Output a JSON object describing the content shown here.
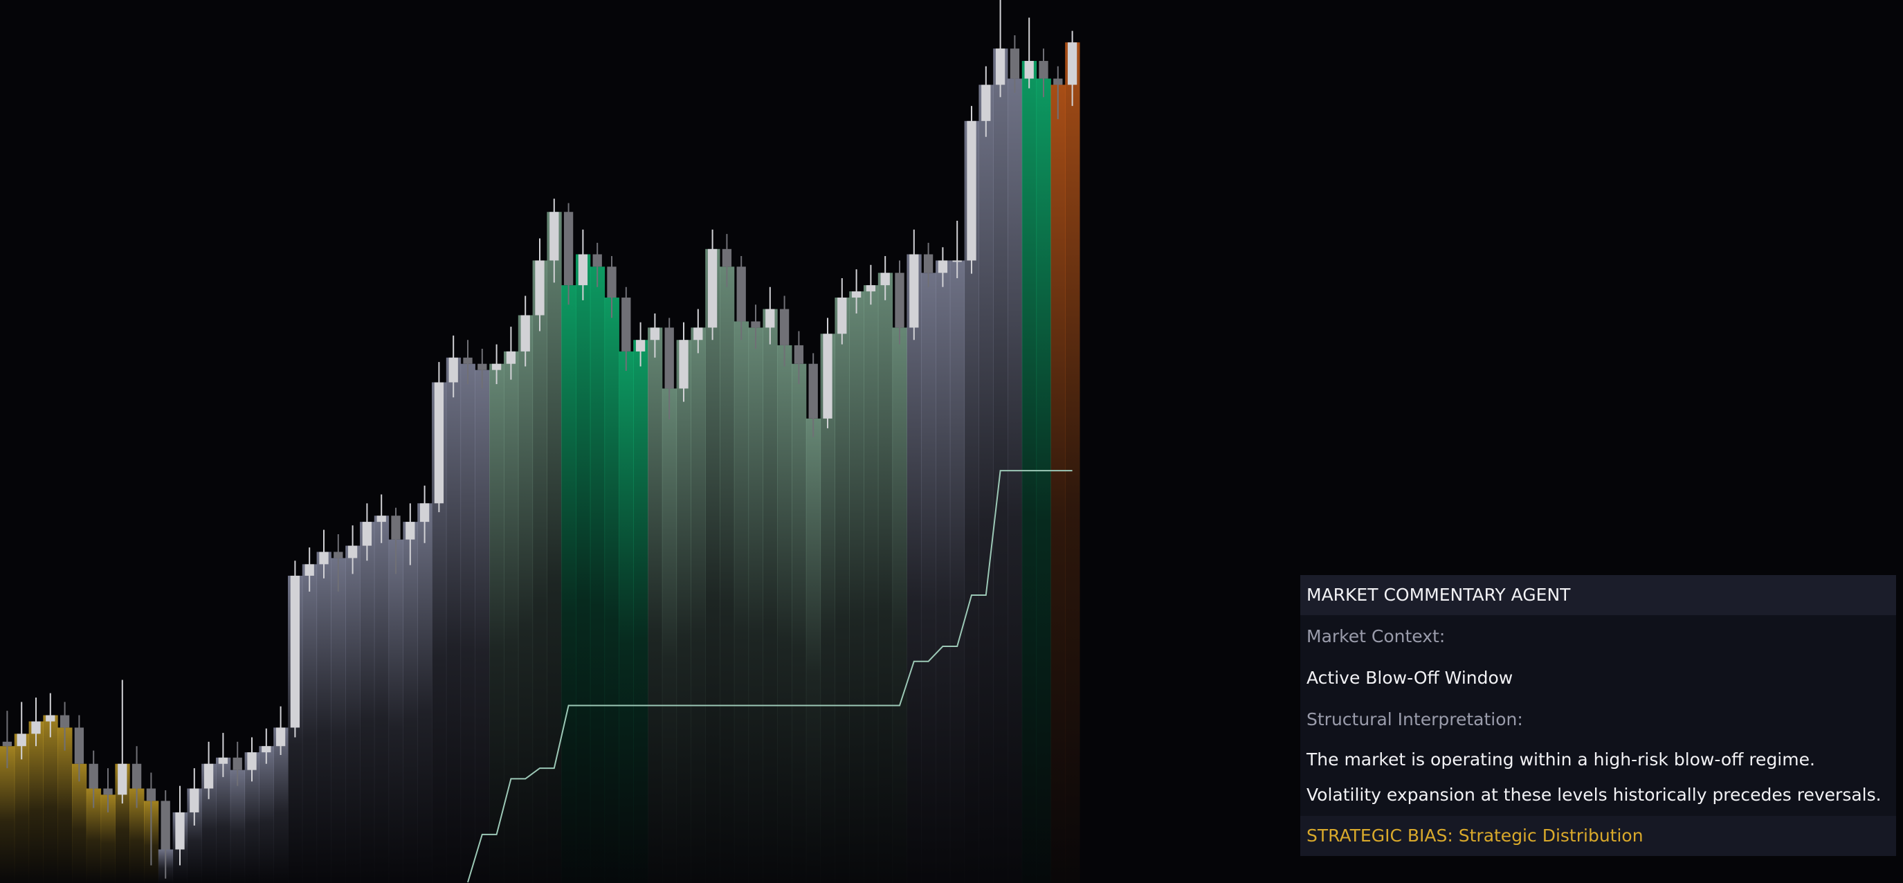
{
  "chart_data": {
    "type": "candlestick",
    "open": [
      16.0,
      15.5,
      16.9,
      18.3,
      19.0,
      17.6,
      13.5,
      10.7,
      10.0,
      13.5,
      10.7,
      9.3,
      3.8,
      8.0,
      10.7,
      13.5,
      14.2,
      12.8,
      14.8,
      15.5,
      17.6,
      34.8,
      36.1,
      37.5,
      36.8,
      38.2,
      40.9,
      41.6,
      38.9,
      40.9,
      43.0,
      56.7,
      59.5,
      58.8,
      58.1,
      58.8,
      60.2,
      64.3,
      70.5,
      76.0,
      67.7,
      71.2,
      69.8,
      66.3,
      60.2,
      61.5,
      62.9,
      56.0,
      61.5,
      62.9,
      71.8,
      69.8,
      63.6,
      62.9,
      65.0,
      60.9,
      58.8,
      52.6,
      62.2,
      66.3,
      67.0,
      67.7,
      69.1,
      62.9,
      71.2,
      69.1,
      70.5,
      70.5,
      86.3,
      90.4,
      94.5,
      91.1,
      93.1,
      91.1,
      90.4
    ],
    "high": [
      19.5,
      20.5,
      21.0,
      21.5,
      20.5,
      19.0,
      15.0,
      13.0,
      23.0,
      15.5,
      12.5,
      10.5,
      11.0,
      13.0,
      16.0,
      17.0,
      16.0,
      16.5,
      17.5,
      20.0,
      36.5,
      38.0,
      40.0,
      39.5,
      40.5,
      43.0,
      44.0,
      42.5,
      43.0,
      45.0,
      59.0,
      62.0,
      61.5,
      60.5,
      61.0,
      63.0,
      66.5,
      73.0,
      77.5,
      77.0,
      74.0,
      72.5,
      71.0,
      67.5,
      63.5,
      64.5,
      64.0,
      63.5,
      65.0,
      74.0,
      73.5,
      71.0,
      65.5,
      67.5,
      66.5,
      62.5,
      60.0,
      64.0,
      68.5,
      69.5,
      70.0,
      71.0,
      70.5,
      74.0,
      72.5,
      72.0,
      75.0,
      88.0,
      92.5,
      100.0,
      96.0,
      98.0,
      94.5,
      92.5,
      96.5
    ],
    "low": [
      13.0,
      14.0,
      15.5,
      16.5,
      15.0,
      11.5,
      8.5,
      8.0,
      9.0,
      8.5,
      2.0,
      0.5,
      2.0,
      6.5,
      9.5,
      12.0,
      11.0,
      11.5,
      13.5,
      14.5,
      16.5,
      33.0,
      34.5,
      33.0,
      35.0,
      36.5,
      38.5,
      35.0,
      36.0,
      38.5,
      42.0,
      55.0,
      56.5,
      56.0,
      56.5,
      57.0,
      58.5,
      62.5,
      68.0,
      65.5,
      66.0,
      67.5,
      64.0,
      58.0,
      58.5,
      59.5,
      52.5,
      54.5,
      60.0,
      61.5,
      67.5,
      61.5,
      60.5,
      61.0,
      58.5,
      56.5,
      50.5,
      51.5,
      61.0,
      64.5,
      65.5,
      66.0,
      61.0,
      61.5,
      67.5,
      67.5,
      68.5,
      69.0,
      84.5,
      89.0,
      89.5,
      90.0,
      89.0,
      86.5,
      88.0
    ],
    "close": [
      15.5,
      16.9,
      18.3,
      19.0,
      17.6,
      13.5,
      10.7,
      10.0,
      13.5,
      10.7,
      9.3,
      3.8,
      8.0,
      10.7,
      13.5,
      14.2,
      12.8,
      14.8,
      15.5,
      17.6,
      34.8,
      36.1,
      37.5,
      36.8,
      38.2,
      40.9,
      41.6,
      38.9,
      40.9,
      43.0,
      56.7,
      59.5,
      58.8,
      58.1,
      58.8,
      60.2,
      64.3,
      70.5,
      76.0,
      67.7,
      71.2,
      69.8,
      66.3,
      60.2,
      61.5,
      62.9,
      56.0,
      61.5,
      62.9,
      71.8,
      69.8,
      63.6,
      62.9,
      65.0,
      60.9,
      58.8,
      52.6,
      62.2,
      66.3,
      67.0,
      67.7,
      69.1,
      62.9,
      71.2,
      69.1,
      70.5,
      70.5,
      86.3,
      90.4,
      94.5,
      91.1,
      93.1,
      91.1,
      90.4,
      95.2
    ],
    "ylim": [
      0,
      100
    ],
    "up_color": "#d2d2d6",
    "down_color": "#707076",
    "bands": [
      {
        "from": 0,
        "to": 10,
        "color": "#c9a227"
      },
      {
        "from": 11,
        "to": 33,
        "color": "#8a8ea6"
      },
      {
        "from": 34,
        "to": 38,
        "color": "#7fa890"
      },
      {
        "from": 39,
        "to": 44,
        "color": "#0fbf78"
      },
      {
        "from": 45,
        "to": 62,
        "color": "#7fa890"
      },
      {
        "from": 63,
        "to": 70,
        "color": "#8a8ea6"
      },
      {
        "from": 71,
        "to": 72,
        "color": "#0fbf78"
      },
      {
        "from": 73,
        "to": 74,
        "color": "#d0601a"
      }
    ],
    "stop_line": {
      "color": "#9cc8b6",
      "values": [
        null,
        null,
        null,
        null,
        null,
        null,
        null,
        null,
        null,
        null,
        null,
        null,
        null,
        null,
        null,
        null,
        null,
        null,
        null,
        null,
        null,
        null,
        null,
        null,
        null,
        null,
        null,
        null,
        null,
        null,
        null,
        null,
        0.0,
        5.5,
        5.5,
        11.8,
        11.8,
        13.0,
        13.0,
        20.1,
        20.1,
        20.1,
        20.1,
        20.1,
        20.1,
        20.1,
        20.1,
        20.1,
        20.1,
        20.1,
        20.1,
        20.1,
        20.1,
        20.1,
        20.1,
        20.1,
        20.1,
        20.1,
        20.1,
        20.1,
        20.1,
        20.1,
        20.1,
        25.1,
        25.1,
        26.8,
        26.8,
        32.6,
        32.6,
        46.7,
        46.7,
        46.7,
        46.7,
        46.7,
        46.7
      ]
    }
  },
  "panel": {
    "title": "MARKET COMMENTARY AGENT",
    "context_label": "Market Context:",
    "context_value": "Active Blow-Off Window",
    "interpretation_label": "Structural Interpretation:",
    "interpretation_lines": [
      "The market is operating within a high-risk blow-off regime.",
      "Volatility expansion at these levels historically precedes reversals."
    ],
    "bias": "STRATEGIC BIAS: Strategic Distribution"
  }
}
